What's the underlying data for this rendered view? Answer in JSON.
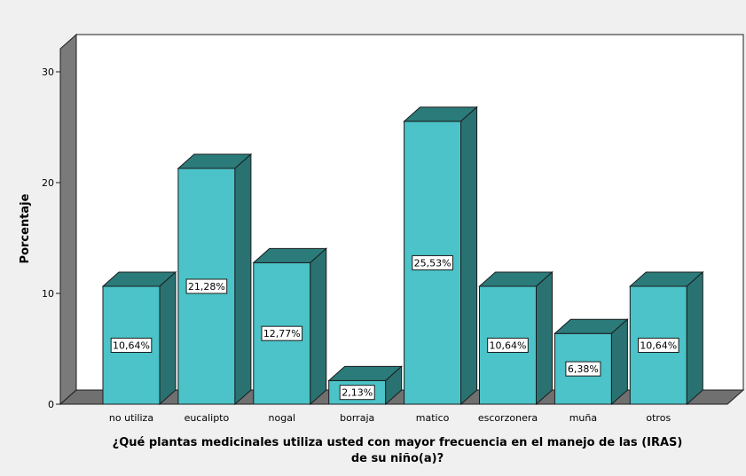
{
  "chart_data": {
    "type": "bar",
    "style": "3d",
    "categories": [
      "no utiliza",
      "eucalipto",
      "nogal",
      "borraja",
      "matico",
      "escorzonera",
      "muña",
      "otros"
    ],
    "values": [
      10.64,
      21.28,
      12.77,
      2.13,
      25.53,
      10.64,
      6.38,
      10.64
    ],
    "data_labels": [
      "10,64%",
      "21,28%",
      "12,77%",
      "2,13%",
      "25,53%",
      "10,64%",
      "6,38%",
      "10,64%"
    ],
    "ylabel": "Porcentaje",
    "xlabel_lines": [
      "¿Qué plantas medicinales utiliza usted con mayor frecuencia en el manejo de las (IRAS)",
      "de su niño(a)?"
    ],
    "yticks": [
      0,
      10,
      20,
      30
    ],
    "ylim": [
      0,
      30
    ],
    "grid": false,
    "legend": "none",
    "colors": {
      "background": "#f0f0f0",
      "plot_area": "#ffffff",
      "bar_front": "#4bc3c8",
      "bar_top": "#2b7b7b",
      "bar_side": "#2a7272",
      "floor": "#707070",
      "back_wall_side": "#7a7a7a",
      "stroke": "#1c1c1c"
    }
  }
}
